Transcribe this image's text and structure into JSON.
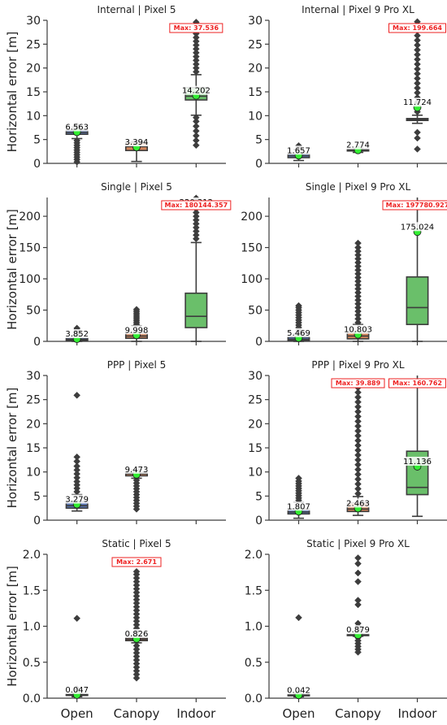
{
  "chart_data": [
    {
      "type": "box",
      "title": "Internal | Pixel 5",
      "ylabel": "Horizontal error [m]",
      "ylim": [
        0,
        30
      ],
      "yticks": [
        0,
        5,
        10,
        15,
        20,
        25,
        30
      ],
      "categories": [
        "Open",
        "Canopy",
        "Indoor"
      ],
      "boxes": [
        {
          "q1": 6.1,
          "median": 6.5,
          "q3": 7.0,
          "whisker_low": 5.2,
          "whisker_high": 7.6,
          "outliers": [
            0.3,
            0.8,
            1.3,
            1.8,
            2.3,
            2.8,
            3.3,
            3.8,
            4.3,
            4.8,
            7.9
          ],
          "mean": 6.563,
          "label": "6.563"
        },
        {
          "q1": 2.7,
          "median": 3.5,
          "q3": 4.4,
          "whisker_low": 0.4,
          "whisker_high": 4.6,
          "outliers": [],
          "mean": 3.394,
          "label": "3.394"
        },
        {
          "q1": 13.3,
          "median": 14.1,
          "q3": 15.9,
          "whisker_low": 10.1,
          "whisker_high": 18.6,
          "outliers": [
            3.8,
            4.8,
            5.8,
            6.8,
            7.8,
            8.8,
            9.6,
            19.2,
            20.0,
            20.8,
            21.6,
            22.4,
            23.2,
            24.0,
            24.8,
            25.6,
            26.4,
            27.2,
            28.0,
            28.8,
            29.6
          ],
          "mean": 14.202,
          "label": "14.202",
          "max_label": "Max: 37.536"
        }
      ]
    },
    {
      "type": "box",
      "title": "Internal | Pixel 9 Pro XL",
      "ylim": [
        0,
        30
      ],
      "yticks": [
        0,
        5,
        10,
        15,
        20,
        25,
        30
      ],
      "categories": [
        "Open",
        "Canopy",
        "Indoor"
      ],
      "boxes": [
        {
          "q1": 1.2,
          "median": 1.6,
          "q3": 2.0,
          "whisker_low": 0.6,
          "whisker_high": 2.9,
          "outliers": [
            3.3,
            3.7
          ],
          "mean": 1.657,
          "label": "1.657"
        },
        {
          "q1": 2.6,
          "median": 2.8,
          "q3": 3.0,
          "whisker_low": 2.3,
          "whisker_high": 3.2,
          "outliers": [],
          "mean": 2.774,
          "label": "2.774"
        },
        {
          "q1": 9.0,
          "median": 9.2,
          "q3": 9.4,
          "whisker_low": 8.4,
          "whisker_high": 10.1,
          "outliers": [
            3.0,
            5.3,
            6.5,
            10.8,
            11.8,
            12.8,
            13.8,
            14.8,
            15.8,
            16.8,
            17.8,
            18.8,
            19.8,
            20.8,
            21.8,
            22.8,
            23.8,
            24.8,
            25.8,
            26.8,
            27.8,
            28.8,
            29.7
          ],
          "mean": 11.724,
          "label": "11.724",
          "max_label": "Max: 199.664"
        }
      ]
    },
    {
      "type": "box",
      "title": "Single | Pixel 5",
      "ylabel": "Horizontal error [m]",
      "ylim": [
        0,
        230
      ],
      "yticks": [
        0,
        50,
        100,
        150,
        200
      ],
      "categories": [
        "Open",
        "Canopy",
        "Indoor"
      ],
      "boxes": [
        {
          "q1": 1.5,
          "median": 3.0,
          "q3": 5.5,
          "whisker_low": 0,
          "whisker_high": 9,
          "outliers": [
            11,
            13,
            15,
            17,
            19,
            21
          ],
          "mean": 3.852,
          "label": "3.852"
        },
        {
          "q1": 5,
          "median": 8.5,
          "q3": 14,
          "whisker_low": 0,
          "whisker_high": 25,
          "outliers": [
            27,
            30,
            33,
            36,
            39,
            42,
            45,
            48,
            51
          ],
          "mean": 9.998,
          "label": "9.998"
        },
        {
          "q1": 22,
          "median": 40,
          "q3": 77,
          "whisker_low": 0,
          "whisker_high": 158,
          "outliers": [
            164,
            170,
            176,
            182,
            188,
            194,
            200,
            206,
            212,
            218,
            224,
            229
          ],
          "mean": 220.312,
          "label": "220.312",
          "max_label": "Max: 180144.357"
        }
      ]
    },
    {
      "type": "box",
      "title": "Single | Pixel 9 Pro XL",
      "ylim": [
        0,
        230
      ],
      "yticks": [
        0,
        50,
        100,
        150,
        200
      ],
      "categories": [
        "Open",
        "Canopy",
        "Indoor"
      ],
      "boxes": [
        {
          "q1": 1.5,
          "median": 3.5,
          "q3": 7,
          "whisker_low": 0,
          "whisker_high": 12,
          "outliers": [
            14,
            18,
            22,
            26,
            30,
            34,
            38,
            42,
            46,
            50,
            54,
            57
          ],
          "mean": 5.469,
          "label": "5.469"
        },
        {
          "q1": 4,
          "median": 8.5,
          "q3": 15,
          "whisker_low": 0,
          "whisker_high": 27,
          "outliers": [
            30,
            36,
            42,
            48,
            54,
            60,
            66,
            72,
            78,
            84,
            90,
            96,
            102,
            108,
            114,
            120,
            126,
            132,
            138,
            144,
            150,
            157
          ],
          "mean": 10.803,
          "label": "10.803"
        },
        {
          "q1": 27,
          "median": 54,
          "q3": 103,
          "whisker_low": 0,
          "whisker_high": 230,
          "outliers": [],
          "mean": 175.024,
          "label": "175.024",
          "max_label": "Max: 197780.927"
        }
      ]
    },
    {
      "type": "box",
      "title": "PPP | Pixel 5",
      "ylabel": "Horizontal error [m]",
      "ylim": [
        0,
        30
      ],
      "yticks": [
        0,
        5,
        10,
        15,
        20,
        25,
        30
      ],
      "categories": [
        "Open",
        "Canopy",
        "Indoor"
      ],
      "boxes": [
        {
          "q1": 2.5,
          "median": 3.0,
          "q3": 3.9,
          "whisker_low": 1.9,
          "whisker_high": 5.3,
          "outliers": [
            5.9,
            6.6,
            7.3,
            8.0,
            8.8,
            9.6,
            10.4,
            11.2,
            12.2,
            13.1,
            25.9
          ],
          "mean": 3.279,
          "label": "3.279"
        },
        {
          "q1": 9.2,
          "median": 9.6,
          "q3": 9.9,
          "whisker_low": 8.7,
          "whisker_high": 10.4,
          "outliers": [
            2.3,
            2.9,
            3.5,
            4.1,
            4.7,
            5.3,
            5.9,
            6.5,
            7.1,
            7.7,
            8.3
          ],
          "mean": 9.473,
          "label": "9.473"
        }
      ]
    },
    {
      "type": "box",
      "title": "PPP | Pixel 9 Pro XL",
      "ylim": [
        0,
        30
      ],
      "yticks": [
        0,
        5,
        10,
        15,
        20,
        25,
        30
      ],
      "categories": [
        "Open",
        "Canopy",
        "Indoor"
      ],
      "boxes": [
        {
          "q1": 1.3,
          "median": 1.7,
          "q3": 2.3,
          "whisker_low": 0.4,
          "whisker_high": 3.7,
          "outliers": [
            4.1,
            4.6,
            5.1,
            5.6,
            6.1,
            6.6,
            7.1,
            7.6,
            8.1,
            8.7
          ],
          "mean": 1.807,
          "label": "1.807"
        },
        {
          "q1": 1.8,
          "median": 2.3,
          "q3": 3.6,
          "whisker_low": 1.0,
          "whisker_high": 4.9,
          "outliers": [
            5.5,
            6.5,
            7.5,
            8.5,
            9.5,
            10.5,
            11.5,
            12.5,
            13.5,
            14.5,
            15.5,
            16.5,
            17.5,
            18.5,
            19.5,
            20.5,
            21.5,
            22.5,
            23.5,
            24.5,
            25.5,
            26.5,
            27.5,
            28.5
          ],
          "mean": 2.463,
          "label": "2.463",
          "max_label": "Max: 39.889"
        },
        {
          "q1": 5.3,
          "median": 6.8,
          "q3": 14.3,
          "whisker_low": 0.8,
          "whisker_high": 30,
          "outliers": [],
          "mean": 11.136,
          "label": "11.136",
          "max_label": "Max: 160.762"
        }
      ]
    },
    {
      "type": "box",
      "title": "Static | Pixel 5",
      "ylabel": "Horizontal error [m]",
      "ylim": [
        0,
        2.0
      ],
      "yticks": [
        0.0,
        0.5,
        1.0,
        1.5,
        2.0
      ],
      "ytick_labels": [
        "0.0",
        "0.5",
        "1.0",
        "1.5",
        "2.0"
      ],
      "xtick_labels": true,
      "categories": [
        "Open",
        "Canopy",
        "Indoor"
      ],
      "boxes": [
        {
          "q1": 0.04,
          "median": 0.047,
          "q3": 0.055,
          "whisker_low": 0.02,
          "whisker_high": 0.07,
          "outliers": [
            0.13,
            1.11
          ],
          "mean": 0.047,
          "label": "0.047"
        },
        {
          "q1": 0.8,
          "median": 0.82,
          "q3": 0.84,
          "whisker_low": 0.77,
          "whisker_high": 0.87,
          "outliers": [
            0.28,
            0.33,
            0.38,
            0.43,
            0.48,
            0.53,
            0.58,
            0.63,
            0.68,
            0.73,
            0.92,
            0.97,
            1.02,
            1.07,
            1.12,
            1.17,
            1.22,
            1.27,
            1.32,
            1.37,
            1.42,
            1.47,
            1.52,
            1.57,
            1.62,
            1.67,
            1.72,
            1.76
          ],
          "mean": 0.826,
          "label": "0.826",
          "max_label": "Max: 2.671"
        }
      ]
    },
    {
      "type": "box",
      "title": "Static | Pixel 9 Pro XL",
      "ylim": [
        0,
        2.0
      ],
      "yticks": [
        0.0,
        0.5,
        1.0,
        1.5,
        2.0
      ],
      "ytick_labels": [
        "0.0",
        "0.5",
        "1.0",
        "1.5",
        "2.0"
      ],
      "xtick_labels": true,
      "categories": [
        "Open",
        "Canopy",
        "Indoor"
      ],
      "boxes": [
        {
          "q1": 0.035,
          "median": 0.042,
          "q3": 0.05,
          "whisker_low": 0.02,
          "whisker_high": 0.06,
          "outliers": [
            1.12
          ],
          "mean": 0.042,
          "label": "0.042"
        },
        {
          "q1": 0.87,
          "median": 0.88,
          "q3": 0.89,
          "whisker_low": 0.86,
          "whisker_high": 0.9,
          "outliers": [
            0.64,
            0.68,
            0.72,
            0.76,
            0.8,
            0.84,
            0.95,
            1.0,
            1.04,
            1.3,
            1.36,
            1.62,
            1.74,
            1.87,
            1.95
          ],
          "mean": 0.879,
          "label": "0.879"
        }
      ]
    }
  ],
  "colors": {
    "open": "#5876b5",
    "canopy": "#d3865c",
    "indoor": "#6abf6a",
    "mean_marker": "#33ee33",
    "max_label": "#ee2222",
    "lines": "#3d3d3d"
  }
}
